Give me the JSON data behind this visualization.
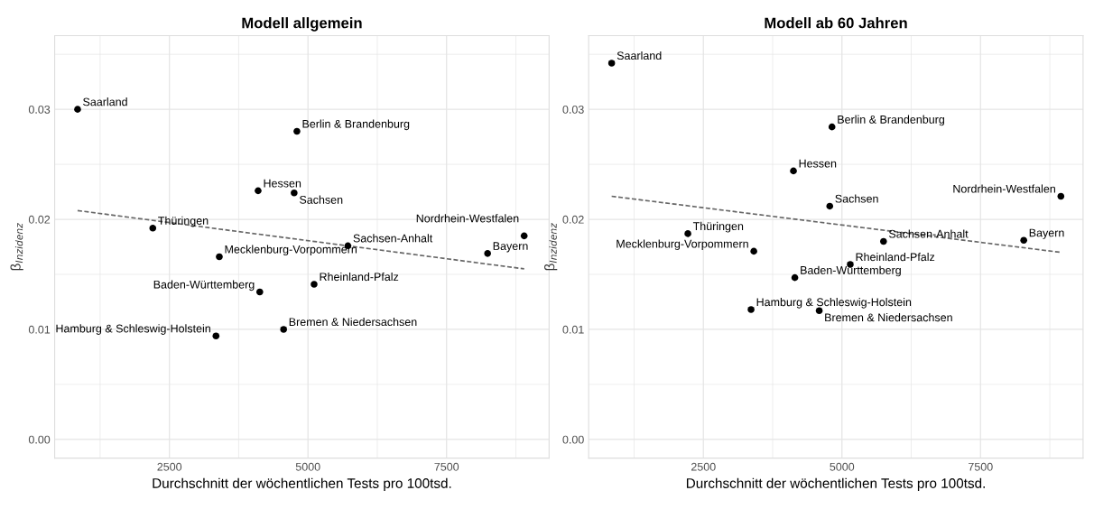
{
  "chart_data": [
    {
      "type": "scatter",
      "title": "Modell allgemein",
      "xlabel": "Durchschnitt der wöchentlichen Tests pro 100tsd.",
      "ylabel": "β$_{Inzidenz}$",
      "xlim": [
        430,
        9350
      ],
      "ylim": [
        -0.0017,
        0.0367
      ],
      "xticks": [
        {
          "value": 1250,
          "label": null
        },
        2500,
        {
          "value": 3750,
          "label": null
        },
        5000,
        {
          "value": 6250,
          "label": null
        },
        7500,
        {
          "value": 8750,
          "label": null
        }
      ],
      "yticks": [
        {
          "value": 0,
          "label": "0.00"
        },
        {
          "value": 0.005,
          "label": null
        },
        {
          "value": 0.01,
          "label": "0.01"
        },
        {
          "value": 0.015,
          "label": null
        },
        {
          "value": 0.02,
          "label": "0.02"
        },
        {
          "value": 0.025,
          "label": null
        },
        {
          "value": 0.03,
          "label": "0.03"
        },
        {
          "value": 0.035,
          "label": null
        }
      ],
      "grid": true,
      "marker": "circle",
      "series": [
        {
          "color": "#000000",
          "x": [
            843,
            4800,
            4100,
            4750,
            2200,
            5720,
            8900,
            8240,
            3400,
            5110,
            4130,
            4560,
            3340
          ],
          "values": [
            0.03,
            0.028,
            0.0226,
            0.0224,
            0.0192,
            0.0176,
            0.0185,
            0.0169,
            0.0166,
            0.0141,
            0.0134,
            0.01,
            0.0094
          ]
        },
        {
          "type": "line",
          "color": "#666666",
          "line_style": "dashed",
          "marker": "none",
          "x": [
            843,
            8900
          ],
          "values": [
            0.0208,
            0.0155
          ]
        }
      ],
      "annotations": [
        {
          "text": "Saarland",
          "x": 843,
          "y": 0.03
        },
        {
          "text": "Berlin & Brandenburg",
          "x": 4800,
          "y": 0.028
        },
        {
          "text": "Hessen",
          "x": 4100,
          "y": 0.0226
        },
        {
          "text": "Sachsen",
          "x": 4750,
          "y": 0.0224
        },
        {
          "text": "Thüringen",
          "x": 2200,
          "y": 0.0192
        },
        {
          "text": "Sachsen-Anhalt",
          "x": 5720,
          "y": 0.0176
        },
        {
          "text": "Nordrhein-Westfalen",
          "x": 8900,
          "y": 0.0185
        },
        {
          "text": "Bayern",
          "x": 8240,
          "y": 0.0169
        },
        {
          "text": "Mecklenburg-Vorpommern",
          "x": 3400,
          "y": 0.0166
        },
        {
          "text": "Rheinland-Pfalz",
          "x": 5110,
          "y": 0.0141
        },
        {
          "text": "Baden-Württemberg",
          "x": 4130,
          "y": 0.0134
        },
        {
          "text": "Bremen & Niedersachsen",
          "x": 4560,
          "y": 0.01
        },
        {
          "text": "Hamburg & Schleswig-Holstein",
          "x": 3340,
          "y": 0.0094
        }
      ]
    },
    {
      "type": "scatter",
      "title": "Modell ab 60 Jahren",
      "xlabel": "Durchschnitt der wöchentlichen Tests pro 100tsd.",
      "ylabel": "β$_{Inzidenz}$",
      "xlim": [
        430,
        9350
      ],
      "ylim": [
        -0.0017,
        0.0367
      ],
      "xticks": [
        {
          "value": 1250,
          "label": null
        },
        2500,
        {
          "value": 3750,
          "label": null
        },
        5000,
        {
          "value": 6250,
          "label": null
        },
        7500,
        {
          "value": 8750,
          "label": null
        }
      ],
      "yticks": [
        {
          "value": 0,
          "label": "0.00"
        },
        {
          "value": 0.005,
          "label": null
        },
        {
          "value": 0.01,
          "label": "0.01"
        },
        {
          "value": 0.015,
          "label": null
        },
        {
          "value": 0.02,
          "label": "0.02"
        },
        {
          "value": 0.025,
          "label": null
        },
        {
          "value": 0.03,
          "label": "0.03"
        },
        {
          "value": 0.035,
          "label": null
        }
      ],
      "grid": true,
      "marker": "circle",
      "series": [
        {
          "color": "#000000",
          "x": [
            845,
            4820,
            4125,
            4780,
            8950,
            2220,
            5750,
            8280,
            3410,
            5150,
            4150,
            3360,
            4590
          ],
          "values": [
            0.0342,
            0.0284,
            0.0244,
            0.0212,
            0.0221,
            0.0187,
            0.018,
            0.0181,
            0.0171,
            0.0159,
            0.0147,
            0.0118,
            0.0117
          ]
        },
        {
          "type": "line",
          "color": "#666666",
          "line_style": "dashed",
          "marker": "none",
          "x": [
            845,
            8950
          ],
          "values": [
            0.0221,
            0.017
          ]
        }
      ],
      "annotations": [
        {
          "text": "Saarland",
          "x": 845,
          "y": 0.0342
        },
        {
          "text": "Berlin & Brandenburg",
          "x": 4820,
          "y": 0.0284
        },
        {
          "text": "Hessen",
          "x": 4125,
          "y": 0.0244
        },
        {
          "text": "Sachsen",
          "x": 4780,
          "y": 0.0212
        },
        {
          "text": "Nordrhein-Westfalen",
          "x": 8950,
          "y": 0.0221
        },
        {
          "text": "Thüringen",
          "x": 2220,
          "y": 0.0187
        },
        {
          "text": "Sachsen-Anhalt",
          "x": 5750,
          "y": 0.018
        },
        {
          "text": "Bayern",
          "x": 8280,
          "y": 0.0181
        },
        {
          "text": "Mecklenburg-Vorpommern",
          "x": 3410,
          "y": 0.0171
        },
        {
          "text": "Rheinland-Pfalz",
          "x": 5150,
          "y": 0.0159
        },
        {
          "text": "Baden-Württemberg",
          "x": 4150,
          "y": 0.0147
        },
        {
          "text": "Hamburg & Schleswig-Holstein",
          "x": 3360,
          "y": 0.0118
        },
        {
          "text": "Bremen & Niedersachsen",
          "x": 4590,
          "y": 0.0117
        }
      ]
    }
  ]
}
